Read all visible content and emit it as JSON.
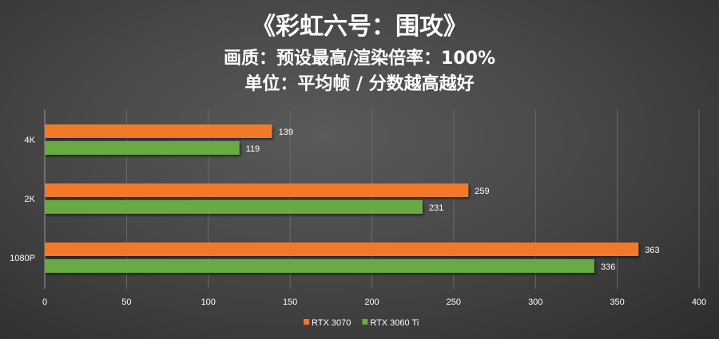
{
  "chart_data": {
    "type": "bar",
    "orientation": "horizontal",
    "title": "《彩虹六号：围攻》",
    "subtitle": "画质：预设最高/渲染倍率：100%",
    "subtitle2": "单位：平均帧 / 分数越高越好",
    "categories": [
      "4K",
      "2K",
      "1080P"
    ],
    "series": [
      {
        "name": "RTX 3070",
        "color": "#f07a2a",
        "values": [
          139,
          259,
          363
        ]
      },
      {
        "name": "RTX 3060 Ti",
        "color": "#6aaa44",
        "values": [
          119,
          231,
          336
        ]
      }
    ],
    "xlim": [
      0,
      400
    ],
    "xticks": [
      "0",
      "50",
      "100",
      "150",
      "200",
      "250",
      "300",
      "350",
      "400"
    ],
    "grid": true,
    "legend": "bottom"
  }
}
